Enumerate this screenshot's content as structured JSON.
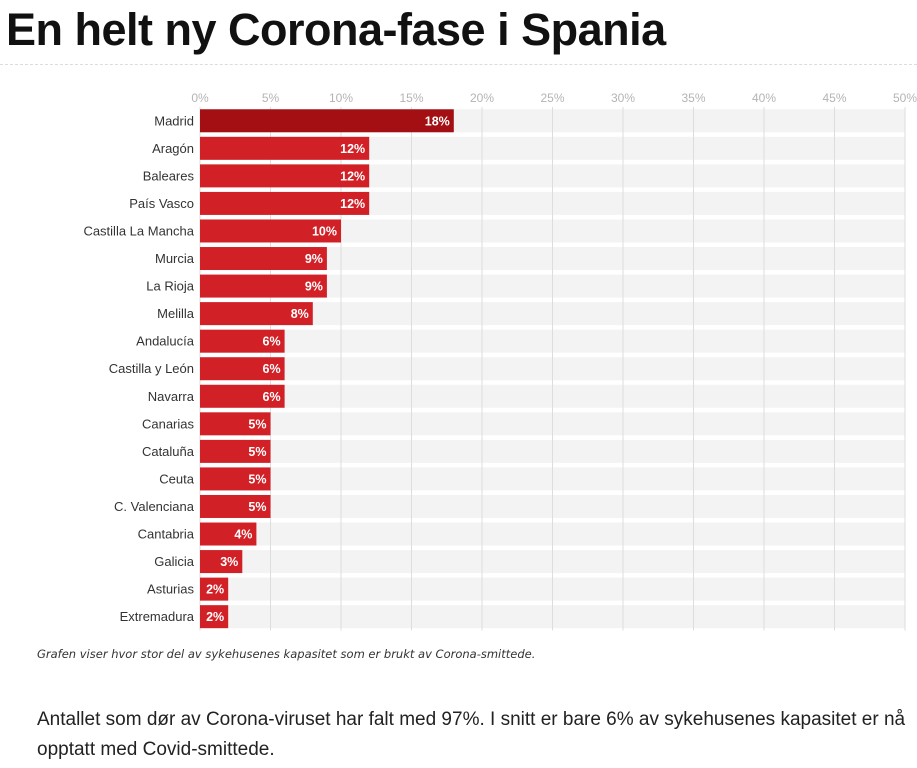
{
  "article": {
    "headline": "En helt ny Corona-fase i Spania",
    "caption": "Grafen viser hvor stor del av sykehusenes kapasitet som er brukt av Corona-smittede.",
    "body": "Antallet som dør av Corona-viruset har falt med 97%. I snitt er bare 6% av sykehusenes kapasitet er nå opptatt med Covid-smittede."
  },
  "chart_data": {
    "type": "bar",
    "orientation": "horizontal",
    "title": "",
    "xlabel": "",
    "ylabel": "",
    "xlim": [
      0,
      50
    ],
    "x_ticks": [
      "0%",
      "5%",
      "10%",
      "15%",
      "20%",
      "25%",
      "30%",
      "35%",
      "40%",
      "45%",
      "50%"
    ],
    "grid": true,
    "categories": [
      "Madrid",
      "Aragón",
      "Baleares",
      "País Vasco",
      "Castilla La Mancha",
      "Murcia",
      "La Rioja",
      "Melilla",
      "Andalucía",
      "Castilla y León",
      "Navarra",
      "Canarias",
      "Cataluña",
      "Ceuta",
      "C. Valenciana",
      "Cantabria",
      "Galicia",
      "Asturias",
      "Extremadura"
    ],
    "values": [
      18,
      12,
      12,
      12,
      10,
      9,
      9,
      8,
      6,
      6,
      6,
      5,
      5,
      5,
      5,
      4,
      3,
      2,
      2
    ],
    "value_labels": [
      "18%",
      "12%",
      "12%",
      "12%",
      "10%",
      "9%",
      "9%",
      "8%",
      "6%",
      "6%",
      "6%",
      "5%",
      "5%",
      "5%",
      "5%",
      "4%",
      "3%",
      "2%",
      "2%"
    ],
    "colors": {
      "highlight": "#a30f12",
      "bar": "#d22027",
      "row_background": "#f3f3f3",
      "grid": "#dddddd",
      "tick_label": "#b4b4b4",
      "category_label": "#333333",
      "label_inside": "#ffffff",
      "label_outside": "#444444"
    }
  }
}
